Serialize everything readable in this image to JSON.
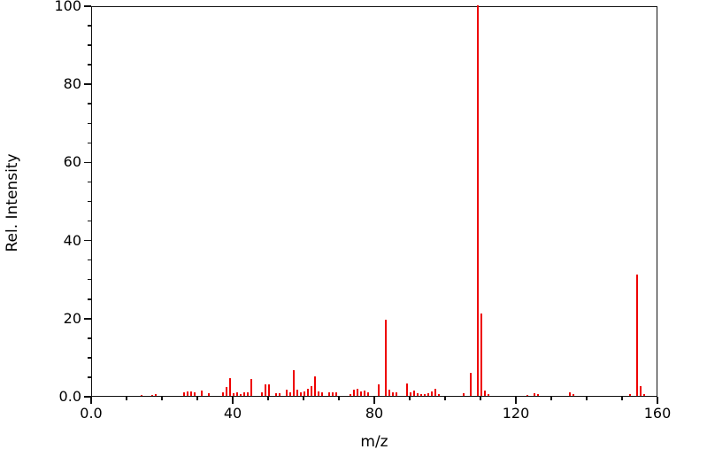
{
  "chart_data": {
    "type": "bar",
    "subtype": "mass-spectrum-stick-plot",
    "title": "",
    "xlabel": "m/z",
    "ylabel": "Rel. Intensity",
    "xlim": [
      0,
      160
    ],
    "ylim": [
      0,
      100
    ],
    "grid": "off",
    "legend": "none",
    "bar_color": "#ee0000",
    "axis_color": "#111111",
    "background_color": "#ffffff",
    "x_ticks": {
      "major_values": [
        0,
        40,
        80,
        120,
        160
      ],
      "major_labels": [
        "0.0",
        "40",
        "80",
        "120",
        "160"
      ],
      "minor_step": 10
    },
    "y_ticks": {
      "major_values": [
        0,
        20,
        40,
        60,
        80,
        100
      ],
      "major_labels": [
        "0.0",
        "20",
        "40",
        "60",
        "80",
        "100"
      ],
      "minor_step": 5
    },
    "peaks": [
      [
        14,
        0.3
      ],
      [
        17,
        0.3
      ],
      [
        18,
        0.4
      ],
      [
        26,
        0.9
      ],
      [
        27,
        1.1
      ],
      [
        28,
        1.1
      ],
      [
        29,
        0.9
      ],
      [
        31,
        1.4
      ],
      [
        33,
        0.7
      ],
      [
        37,
        1.0
      ],
      [
        38,
        2.2
      ],
      [
        39,
        4.5
      ],
      [
        40,
        0.7
      ],
      [
        41,
        0.9
      ],
      [
        42,
        0.5
      ],
      [
        43,
        1.0
      ],
      [
        44,
        0.9
      ],
      [
        45,
        4.4
      ],
      [
        48,
        1.0
      ],
      [
        49,
        3.0
      ],
      [
        50,
        3.0
      ],
      [
        52,
        0.6
      ],
      [
        53,
        0.7
      ],
      [
        55,
        1.7
      ],
      [
        56,
        1.0
      ],
      [
        57,
        6.5
      ],
      [
        58,
        1.5
      ],
      [
        59,
        0.8
      ],
      [
        60,
        1.2
      ],
      [
        61,
        1.9
      ],
      [
        62,
        2.5
      ],
      [
        63,
        5.0
      ],
      [
        64,
        1.2
      ],
      [
        65,
        1.0
      ],
      [
        67,
        0.8
      ],
      [
        68,
        0.9
      ],
      [
        69,
        1.0
      ],
      [
        73,
        0.5
      ],
      [
        74,
        1.5
      ],
      [
        75,
        1.8
      ],
      [
        76,
        1.2
      ],
      [
        77,
        1.4
      ],
      [
        78,
        0.8
      ],
      [
        81,
        3.0
      ],
      [
        83,
        19.5
      ],
      [
        84,
        1.5
      ],
      [
        85,
        1.0
      ],
      [
        86,
        1.0
      ],
      [
        89,
        3.2
      ],
      [
        90,
        1.0
      ],
      [
        91,
        1.4
      ],
      [
        92,
        0.6
      ],
      [
        93,
        0.5
      ],
      [
        94,
        0.5
      ],
      [
        95,
        0.6
      ],
      [
        96,
        1.2
      ],
      [
        97,
        1.8
      ],
      [
        98,
        0.5
      ],
      [
        105,
        0.7
      ],
      [
        107,
        6.0
      ],
      [
        109,
        100
      ],
      [
        110,
        21
      ],
      [
        111,
        1.4
      ],
      [
        112,
        0.5
      ],
      [
        123,
        0.3
      ],
      [
        125,
        0.6
      ],
      [
        126,
        0.5
      ],
      [
        135,
        0.8
      ],
      [
        136,
        0.4
      ],
      [
        152,
        0.4
      ],
      [
        154,
        31
      ],
      [
        155,
        2.6
      ],
      [
        156,
        0.4
      ]
    ]
  }
}
